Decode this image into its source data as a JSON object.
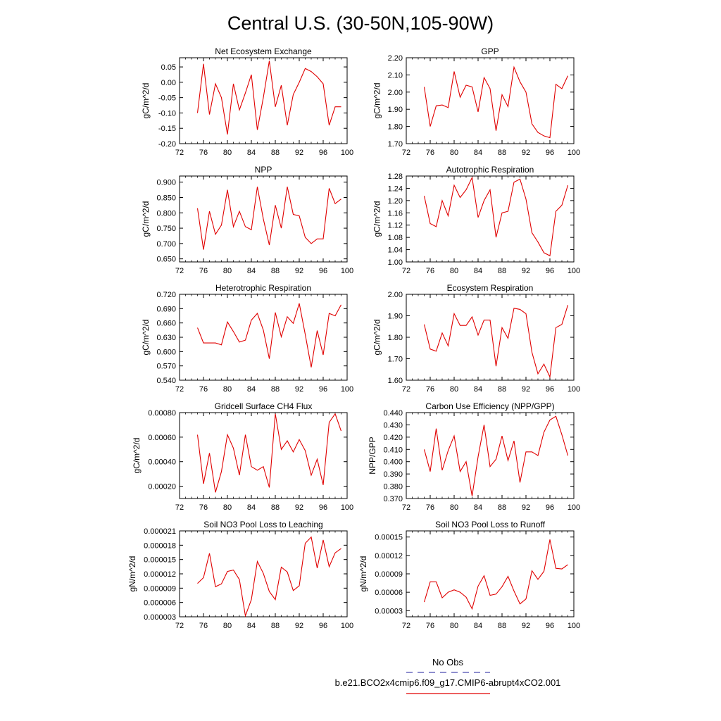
{
  "figure": {
    "title": "Central U.S. (30-50N,105-90W)",
    "legend": {
      "obs_label": "No Obs",
      "obs_color": "#4a4ab0",
      "case_label": "b.e21.BCO2x4cmip6.f09_g17.CMIP6-abrupt4xCO2.001",
      "case_color": "#e00000"
    }
  },
  "chart_data": [
    {
      "type": "line",
      "title": "Net Ecosystem Exchange",
      "ylabel": "gC/m^2/d",
      "xlim": [
        72,
        100
      ],
      "xticks": [
        "72",
        "76",
        "80",
        "84",
        "88",
        "92",
        "96",
        "100"
      ],
      "ylim": [
        -0.2,
        0.08
      ],
      "yticks": [
        "0.05",
        "0.00",
        "-0.05",
        "-0.10",
        "-0.15",
        "-0.20"
      ],
      "x": [
        75,
        76,
        77,
        78,
        79,
        80,
        81,
        82,
        83,
        84,
        85,
        86,
        87,
        88,
        89,
        90,
        91,
        92,
        93,
        94,
        95,
        96,
        97,
        98,
        99
      ],
      "series": [
        {
          "color": "#e00000",
          "values": [
            -0.1,
            0.06,
            -0.105,
            -0.005,
            -0.05,
            -0.17,
            -0.005,
            -0.09,
            -0.035,
            0.025,
            -0.155,
            -0.05,
            0.07,
            -0.08,
            -0.01,
            -0.14,
            -0.04,
            0.0,
            0.045,
            0.035,
            0.018,
            -0.005,
            -0.14,
            -0.08,
            -0.08
          ]
        }
      ]
    },
    {
      "type": "line",
      "title": "GPP",
      "ylabel": "gC/m^2/d",
      "xlim": [
        72,
        100
      ],
      "xticks": [
        "72",
        "76",
        "80",
        "84",
        "88",
        "92",
        "96",
        "100"
      ],
      "ylim": [
        1.7,
        2.2
      ],
      "yticks": [
        "2.20",
        "2.10",
        "2.00",
        "1.90",
        "1.80",
        "1.70"
      ],
      "x": [
        75,
        76,
        77,
        78,
        79,
        80,
        81,
        82,
        83,
        84,
        85,
        86,
        87,
        88,
        89,
        90,
        91,
        92,
        93,
        94,
        95,
        96,
        97,
        98,
        99
      ],
      "series": [
        {
          "color": "#e00000",
          "values": [
            2.03,
            1.8,
            1.92,
            1.925,
            1.91,
            2.12,
            1.97,
            2.04,
            2.03,
            1.885,
            2.085,
            2.02,
            1.775,
            1.985,
            1.915,
            2.145,
            2.06,
            2.0,
            1.815,
            1.765,
            1.745,
            1.735,
            2.045,
            2.02,
            2.095
          ]
        }
      ]
    },
    {
      "type": "line",
      "title": "NPP",
      "ylabel": "gC/m^2/d",
      "xlim": [
        72,
        100
      ],
      "xticks": [
        "72",
        "76",
        "80",
        "84",
        "88",
        "92",
        "96",
        "100"
      ],
      "ylim": [
        0.64,
        0.92
      ],
      "yticks": [
        "0.900",
        "0.850",
        "0.800",
        "0.750",
        "0.700",
        "0.650"
      ],
      "x": [
        75,
        76,
        77,
        78,
        79,
        80,
        81,
        82,
        83,
        84,
        85,
        86,
        87,
        88,
        89,
        90,
        91,
        92,
        93,
        94,
        95,
        96,
        97,
        98,
        99
      ],
      "series": [
        {
          "color": "#e00000",
          "values": [
            0.815,
            0.68,
            0.805,
            0.73,
            0.76,
            0.875,
            0.755,
            0.805,
            0.755,
            0.745,
            0.885,
            0.78,
            0.695,
            0.825,
            0.75,
            0.885,
            0.795,
            0.79,
            0.72,
            0.7,
            0.715,
            0.715,
            0.88,
            0.83,
            0.845
          ]
        }
      ]
    },
    {
      "type": "line",
      "title": "Autotrophic Respiration",
      "ylabel": "gC/m^2/d",
      "xlim": [
        72,
        100
      ],
      "xticks": [
        "72",
        "76",
        "80",
        "84",
        "88",
        "92",
        "96",
        "100"
      ],
      "ylim": [
        1.0,
        1.28
      ],
      "yticks": [
        "1.28",
        "1.24",
        "1.20",
        "1.16",
        "1.12",
        "1.08",
        "1.04",
        "1.00"
      ],
      "x": [
        75,
        76,
        77,
        78,
        79,
        80,
        81,
        82,
        83,
        84,
        85,
        86,
        87,
        88,
        89,
        90,
        91,
        92,
        93,
        94,
        95,
        96,
        97,
        98,
        99
      ],
      "series": [
        {
          "color": "#e00000",
          "values": [
            1.215,
            1.125,
            1.115,
            1.2,
            1.15,
            1.25,
            1.21,
            1.235,
            1.275,
            1.145,
            1.2,
            1.235,
            1.08,
            1.16,
            1.165,
            1.26,
            1.27,
            1.205,
            1.095,
            1.065,
            1.03,
            1.02,
            1.165,
            1.185,
            1.25
          ]
        }
      ]
    },
    {
      "type": "line",
      "title": "Heterotrophic Respiration",
      "ylabel": "gC/m^2/d",
      "xlim": [
        72,
        100
      ],
      "xticks": [
        "72",
        "76",
        "80",
        "84",
        "88",
        "92",
        "96",
        "100"
      ],
      "ylim": [
        0.54,
        0.72
      ],
      "yticks": [
        "0.720",
        "0.690",
        "0.660",
        "0.630",
        "0.600",
        "0.570",
        "0.540"
      ],
      "x": [
        75,
        76,
        77,
        78,
        79,
        80,
        81,
        82,
        83,
        84,
        85,
        86,
        87,
        88,
        89,
        90,
        91,
        92,
        93,
        94,
        95,
        96,
        97,
        98,
        99
      ],
      "series": [
        {
          "color": "#e00000",
          "values": [
            0.65,
            0.618,
            0.618,
            0.618,
            0.614,
            0.662,
            0.642,
            0.62,
            0.624,
            0.666,
            0.68,
            0.645,
            0.585,
            0.682,
            0.631,
            0.673,
            0.659,
            0.701,
            0.636,
            0.567,
            0.644,
            0.593,
            0.68,
            0.675,
            0.698
          ]
        }
      ]
    },
    {
      "type": "line",
      "title": "Ecosystem Respiration",
      "ylabel": "gC/m^2/d",
      "xlim": [
        72,
        100
      ],
      "xticks": [
        "72",
        "76",
        "80",
        "84",
        "88",
        "92",
        "96",
        "100"
      ],
      "ylim": [
        1.6,
        2.0
      ],
      "yticks": [
        "2.00",
        "1.90",
        "1.80",
        "1.70",
        "1.60"
      ],
      "x": [
        75,
        76,
        77,
        78,
        79,
        80,
        81,
        82,
        83,
        84,
        85,
        86,
        87,
        88,
        89,
        90,
        91,
        92,
        93,
        94,
        95,
        96,
        97,
        98,
        99
      ],
      "series": [
        {
          "color": "#e00000",
          "values": [
            1.86,
            1.745,
            1.735,
            1.82,
            1.76,
            1.91,
            1.855,
            1.855,
            1.895,
            1.81,
            1.88,
            1.88,
            1.665,
            1.845,
            1.795,
            1.935,
            1.93,
            1.91,
            1.73,
            1.63,
            1.675,
            1.615,
            1.845,
            1.86,
            1.95
          ]
        }
      ]
    },
    {
      "type": "line",
      "title": "Gridcell Surface CH4 Flux",
      "ylabel": "gC/m^2/d",
      "xlim": [
        72,
        100
      ],
      "xticks": [
        "72",
        "76",
        "80",
        "84",
        "88",
        "92",
        "96",
        "100"
      ],
      "ylim": [
        0.0001,
        0.0008
      ],
      "yticks": [
        "0.00080",
        "0.00060",
        "0.00040",
        "0.00020"
      ],
      "x": [
        75,
        76,
        77,
        78,
        79,
        80,
        81,
        82,
        83,
        84,
        85,
        86,
        87,
        88,
        89,
        90,
        91,
        92,
        93,
        94,
        95,
        96,
        97,
        98,
        99
      ],
      "series": [
        {
          "color": "#e00000",
          "values": [
            0.00062,
            0.00022,
            0.00047,
            0.00015,
            0.00032,
            0.00062,
            0.00051,
            0.00029,
            0.00062,
            0.00036,
            0.00033,
            0.00036,
            0.00019,
            0.00079,
            0.0005,
            0.00057,
            0.00048,
            0.00058,
            0.00049,
            0.00029,
            0.00042,
            0.00021,
            0.00072,
            0.00079,
            0.00065
          ]
        }
      ]
    },
    {
      "type": "line",
      "title": "Carbon Use Efficiency (NPP/GPP)",
      "ylabel": "NPP/GPP",
      "xlim": [
        72,
        100
      ],
      "xticks": [
        "72",
        "76",
        "80",
        "84",
        "88",
        "92",
        "96",
        "100"
      ],
      "ylim": [
        0.37,
        0.44
      ],
      "yticks": [
        "0.440",
        "0.430",
        "0.420",
        "0.410",
        "0.400",
        "0.390",
        "0.380",
        "0.370"
      ],
      "x": [
        75,
        76,
        77,
        78,
        79,
        80,
        81,
        82,
        83,
        84,
        85,
        86,
        87,
        88,
        89,
        90,
        91,
        92,
        93,
        94,
        95,
        96,
        97,
        98,
        99
      ],
      "series": [
        {
          "color": "#e00000",
          "values": [
            0.41,
            0.392,
            0.427,
            0.393,
            0.409,
            0.421,
            0.392,
            0.4,
            0.372,
            0.404,
            0.43,
            0.396,
            0.402,
            0.421,
            0.401,
            0.417,
            0.383,
            0.408,
            0.408,
            0.405,
            0.424,
            0.434,
            0.437,
            0.422,
            0.405
          ]
        }
      ]
    },
    {
      "type": "line",
      "title": "Soil NO3 Pool Loss to Leaching",
      "ylabel": "gN/m^2/d",
      "xlim": [
        72,
        100
      ],
      "xticks": [
        "72",
        "76",
        "80",
        "84",
        "88",
        "92",
        "96",
        "100"
      ],
      "ylim": [
        3e-06,
        2.1e-05
      ],
      "yticks": [
        "0.000021",
        "0.000018",
        "0.000015",
        "0.000012",
        "0.000009",
        "0.000006",
        "0.000003"
      ],
      "x": [
        75,
        76,
        77,
        78,
        79,
        80,
        81,
        82,
        83,
        84,
        85,
        86,
        87,
        88,
        89,
        90,
        91,
        92,
        93,
        94,
        95,
        96,
        97,
        98,
        99
      ],
      "series": [
        {
          "color": "#e00000",
          "values": [
            1e-05,
            1.12e-05,
            1.63e-05,
            9.3e-06,
            9.9e-06,
            1.25e-05,
            1.28e-05,
            1.08e-05,
            3.2e-06,
            6.6e-06,
            1.46e-05,
            1.21e-05,
            8.3e-06,
            6.6e-06,
            1.34e-05,
            1.24e-05,
            8.5e-06,
            9.5e-06,
            1.84e-05,
            1.97e-05,
            1.32e-05,
            1.91e-05,
            1.35e-05,
            1.64e-05,
            1.73e-05
          ]
        }
      ]
    },
    {
      "type": "line",
      "title": "Soil NO3 Pool Loss to Runoff",
      "ylabel": "gN/m^2/d",
      "xlim": [
        72,
        100
      ],
      "xticks": [
        "72",
        "76",
        "80",
        "84",
        "88",
        "92",
        "96",
        "100"
      ],
      "ylim": [
        2e-05,
        0.00016
      ],
      "yticks": [
        "0.00015",
        "0.00012",
        "0.00009",
        "0.00006",
        "0.00003"
      ],
      "x": [
        75,
        76,
        77,
        78,
        79,
        80,
        81,
        82,
        83,
        84,
        85,
        86,
        87,
        88,
        89,
        90,
        91,
        92,
        93,
        94,
        95,
        96,
        97,
        98,
        99
      ],
      "series": [
        {
          "color": "#e00000",
          "values": [
            4.4e-05,
            7.7e-05,
            7.7e-05,
            5.1e-05,
            6e-05,
            6.4e-05,
            6e-05,
            5.2e-05,
            3.3e-05,
            7e-05,
            8.7e-05,
            5.5e-05,
            5.7e-05,
            6.9e-05,
            8.6e-05,
            6.2e-05,
            4.1e-05,
            4.9e-05,
            9.5e-05,
            8.1e-05,
            9.4e-05,
            0.000146,
            9.9e-05,
            9.8e-05,
            0.000105
          ]
        }
      ]
    }
  ]
}
